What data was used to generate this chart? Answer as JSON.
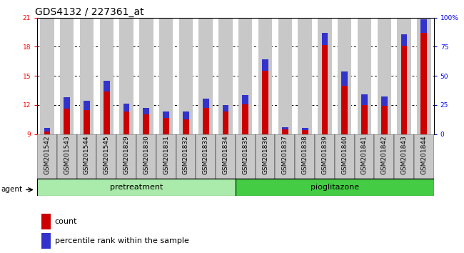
{
  "title": "GDS4132 / 227361_at",
  "samples": [
    "GSM201542",
    "GSM201543",
    "GSM201544",
    "GSM201545",
    "GSM201829",
    "GSM201830",
    "GSM201831",
    "GSM201832",
    "GSM201833",
    "GSM201834",
    "GSM201835",
    "GSM201836",
    "GSM201837",
    "GSM201838",
    "GSM201839",
    "GSM201840",
    "GSM201841",
    "GSM201842",
    "GSM201843",
    "GSM201844"
  ],
  "count_values": [
    9.3,
    11.6,
    11.5,
    13.4,
    11.3,
    11.0,
    10.7,
    10.5,
    11.7,
    11.3,
    12.1,
    15.5,
    9.5,
    9.4,
    18.2,
    14.0,
    12.0,
    11.9,
    18.1,
    19.4
  ],
  "percentile_values": [
    3,
    10,
    8,
    9,
    7,
    6,
    5,
    7,
    8,
    6,
    8,
    10,
    2,
    2,
    10,
    12,
    9,
    8,
    10,
    12
  ],
  "pretreatment_count": 10,
  "pioglitazone_count": 10,
  "ylim_left": [
    9,
    21
  ],
  "ylim_right": [
    0,
    100
  ],
  "yticks_left": [
    9,
    12,
    15,
    18,
    21
  ],
  "yticks_right": [
    0,
    25,
    50,
    75,
    100
  ],
  "agent_label": "agent",
  "group1_label": "pretreatment",
  "group2_label": "pioglitazone",
  "count_color": "#cc0000",
  "percentile_color": "#3333cc",
  "bar_bg_color": "#c8c8c8",
  "group1_bg": "#aaeaaa",
  "group2_bg": "#44cc44",
  "legend_count": "count",
  "legend_percentile": "percentile rank within the sample",
  "title_fontsize": 10,
  "tick_fontsize": 6.5,
  "legend_fontsize": 8
}
